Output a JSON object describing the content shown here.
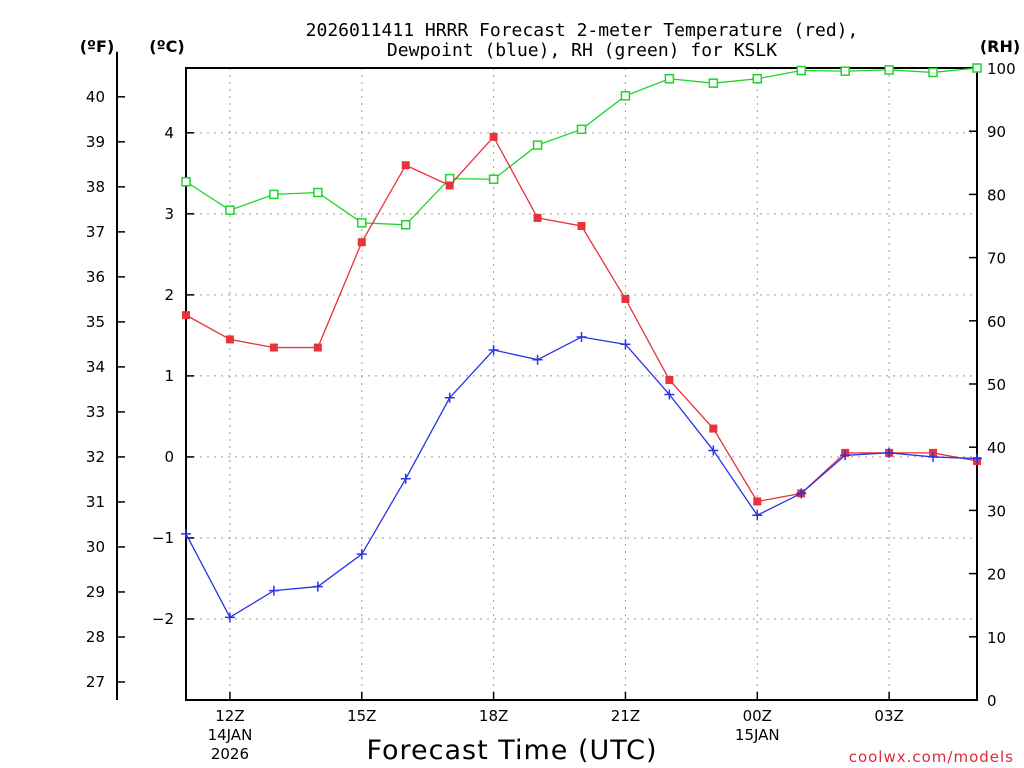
{
  "chart_data": {
    "type": "line",
    "title_line1": "2026011411 HRRR Forecast 2-meter Temperature (red),",
    "title_line2": "Dewpoint (blue), RH (green) for KSLK",
    "xlabel": "Forecast Time (UTC)",
    "unit_left_f": "(ºF)",
    "unit_left_c": "(ºC)",
    "unit_right_rh": "(RH)",
    "credit": "coolwx.com/models",
    "x_hours": [
      11,
      12,
      13,
      14,
      15,
      16,
      17,
      18,
      19,
      20,
      21,
      22,
      23,
      24,
      25,
      26,
      27,
      28,
      29
    ],
    "xlim": [
      11,
      29
    ],
    "x_ticks": [
      {
        "hour": 12,
        "label": "12Z",
        "sub1": "14JAN",
        "sub2": "2026"
      },
      {
        "hour": 15,
        "label": "15Z",
        "sub1": "",
        "sub2": ""
      },
      {
        "hour": 18,
        "label": "18Z",
        "sub1": "",
        "sub2": ""
      },
      {
        "hour": 21,
        "label": "21Z",
        "sub1": "",
        "sub2": ""
      },
      {
        "hour": 24,
        "label": "00Z",
        "sub1": "15JAN",
        "sub2": ""
      },
      {
        "hour": 27,
        "label": "03Z",
        "sub1": "",
        "sub2": ""
      }
    ],
    "celsius_range": [
      -3,
      4.8
    ],
    "celsius_ticks": [
      "-2",
      "-1",
      "0",
      "1",
      "2",
      "3",
      "4"
    ],
    "fahrenheit_ticks": [
      "27",
      "28",
      "29",
      "30",
      "31",
      "32",
      "33",
      "34",
      "35",
      "36",
      "37",
      "38",
      "39",
      "40"
    ],
    "rh_range": [
      0,
      100
    ],
    "rh_ticks": [
      "0",
      "10",
      "20",
      "30",
      "40",
      "50",
      "60",
      "70",
      "80",
      "90",
      "100"
    ],
    "series": [
      {
        "name": "Temperature",
        "axis": "celsius",
        "color": "#e8323c",
        "marker": "filled-square",
        "values": [
          1.75,
          1.45,
          1.35,
          1.35,
          2.65,
          3.6,
          3.35,
          3.95,
          2.95,
          2.85,
          1.95,
          0.95,
          0.35,
          -0.55,
          -0.45,
          0.05,
          0.05,
          0.05,
          -0.05
        ]
      },
      {
        "name": "Dewpoint",
        "axis": "celsius",
        "color": "#2834e6",
        "marker": "plus",
        "values": [
          -0.95,
          -1.98,
          -1.65,
          -1.6,
          -1.2,
          -0.27,
          0.73,
          1.32,
          1.2,
          1.48,
          1.39,
          0.77,
          0.08,
          -0.72,
          -0.45,
          0.02,
          0.05,
          0.0,
          -0.02
        ]
      },
      {
        "name": "RH",
        "axis": "rh",
        "color": "#1ed42a",
        "marker": "open-square",
        "values": [
          82,
          77.5,
          80,
          80.3,
          75.5,
          75.2,
          82.5,
          82.4,
          87.8,
          90.3,
          95.6,
          98.3,
          97.6,
          98.3,
          99.6,
          99.5,
          99.7,
          99.3,
          100
        ]
      }
    ]
  }
}
